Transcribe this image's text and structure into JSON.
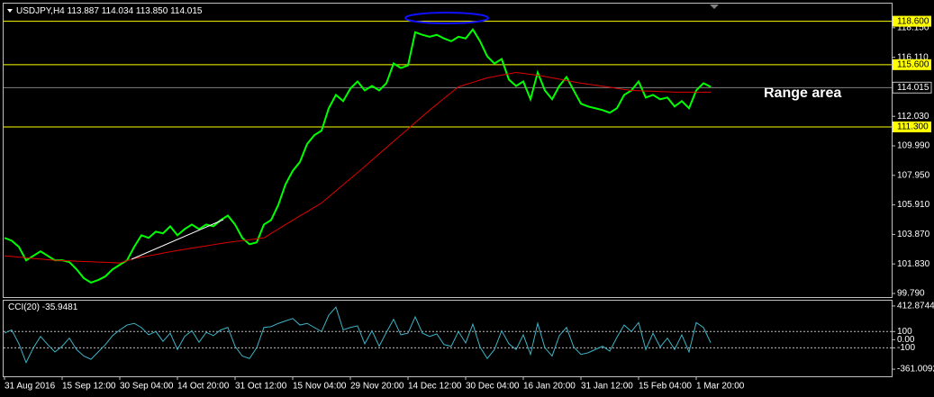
{
  "chart_data": [
    {
      "type": "line",
      "symbol": "USDJPY,H4",
      "ohlc": [
        "113.887",
        "114.034",
        "113.850",
        "114.015"
      ],
      "annotation": "Range area",
      "x": [
        "31 Aug 2016",
        null,
        null,
        null,
        null,
        null,
        null,
        null,
        "15 Sep 12:00",
        null,
        null,
        null,
        null,
        null,
        null,
        null,
        "30 Sep 04:00",
        null,
        null,
        null,
        null,
        null,
        null,
        null,
        "14 Oct 20:00",
        null,
        null,
        null,
        null,
        null,
        null,
        null,
        "31 Oct 12:00",
        null,
        null,
        null,
        null,
        null,
        null,
        null,
        "15 Nov 04:00",
        null,
        null,
        null,
        null,
        null,
        null,
        null,
        "29 Nov 20:00",
        null,
        null,
        null,
        null,
        null,
        null,
        null,
        "14 Dec 12:00",
        null,
        null,
        null,
        null,
        null,
        null,
        null,
        "30 Dec 04:00",
        null,
        null,
        null,
        null,
        null,
        null,
        null,
        "16 Jan 20:00",
        null,
        null,
        null,
        null,
        null,
        null,
        null,
        "31 Jan 12:00",
        null,
        null,
        null,
        null,
        null,
        null,
        null,
        "15 Feb 04:00",
        null,
        null,
        null,
        null,
        null,
        null,
        null,
        "1 Mar 20:00",
        null,
        null
      ],
      "series": [
        {
          "color": "#00ff00",
          "values": [
            103.63,
            103.44,
            103.01,
            102.08,
            102.39,
            102.7,
            102.39,
            102.08,
            102.08,
            101.96,
            101.46,
            100.85,
            100.54,
            100.72,
            100.97,
            101.46,
            101.77,
            102.08,
            103.01,
            103.81,
            103.63,
            104.06,
            103.94,
            104.43,
            103.81,
            104.24,
            104.55,
            104.24,
            104.55,
            104.43,
            104.86,
            105.17,
            104.55,
            103.63,
            103.19,
            103.32,
            104.55,
            104.86,
            105.91,
            107.33,
            108.26,
            108.88,
            110.12,
            110.73,
            111.04,
            112.59,
            113.51,
            113.08,
            113.95,
            114.44,
            113.82,
            114.13,
            113.82,
            114.32,
            115.68,
            115.37,
            115.55,
            117.84,
            117.66,
            117.53,
            117.66,
            117.41,
            117.22,
            117.53,
            117.41,
            118.03,
            117.22,
            116.17,
            115.68,
            115.99,
            114.57,
            114.13,
            114.44,
            113.21,
            115.06,
            113.82,
            113.21,
            114.13,
            114.75,
            113.82,
            112.9,
            112.71,
            112.59,
            112.46,
            112.28,
            112.59,
            113.51,
            113.82,
            114.44,
            113.33,
            113.51,
            113.21,
            113.33,
            112.71,
            113.08,
            112.59,
            113.82,
            114.32,
            114.07
          ]
        },
        {
          "color": "#e00000",
          "values": [
            102.39,
            102.35,
            102.3,
            102.26,
            102.21,
            102.17,
            102.12,
            102.08,
            102.06,
            102.04,
            102.02,
            102.0,
            101.98,
            101.96,
            101.94,
            101.92,
            101.9,
            102.05,
            102.21,
            102.3,
            102.39,
            102.48,
            102.58,
            102.67,
            102.76,
            102.84,
            102.92,
            103.0,
            103.08,
            103.16,
            103.24,
            103.32,
            103.38,
            103.44,
            103.5,
            103.57,
            103.63,
            103.94,
            104.24,
            104.55,
            104.85,
            105.15,
            105.44,
            105.74,
            106.04,
            106.46,
            106.88,
            107.3,
            107.72,
            108.14,
            108.57,
            109.0,
            109.44,
            109.87,
            110.3,
            110.73,
            111.16,
            111.6,
            112.03,
            112.46,
            112.86,
            113.27,
            113.67,
            114.07,
            114.23,
            114.38,
            114.54,
            114.69,
            114.78,
            114.88,
            114.97,
            115.06,
            115.0,
            114.93,
            114.87,
            114.78,
            114.69,
            114.6,
            114.5,
            114.41,
            114.32,
            114.25,
            114.18,
            114.11,
            114.04,
            113.96,
            113.89,
            113.82,
            113.8,
            113.78,
            113.76,
            113.74,
            113.72,
            113.7,
            113.7,
            113.7,
            113.7,
            113.7,
            113.7
          ]
        }
      ],
      "ylim": [
        99.54,
        119.82
      ],
      "yticks": [
        {
          "value": 118.15,
          "label": "118.150"
        },
        {
          "value": 116.11,
          "label": "116.110"
        },
        {
          "value": 112.03,
          "label": "112.030"
        },
        {
          "value": 109.99,
          "label": "109.990"
        },
        {
          "value": 107.95,
          "label": "107.950"
        },
        {
          "value": 105.91,
          "label": "105.910"
        },
        {
          "value": 103.87,
          "label": "103.870"
        },
        {
          "value": 101.83,
          "label": "101.830"
        },
        {
          "value": 99.79,
          "label": "99.790"
        }
      ],
      "levels": [
        {
          "value": 118.6,
          "label": "118.600"
        },
        {
          "value": 115.6,
          "label": "115.600"
        },
        {
          "value": 111.3,
          "label": "111.300"
        }
      ],
      "level_color": "#ffff00",
      "current_price": {
        "value": 114.015,
        "label": "114.015"
      }
    },
    {
      "type": "line",
      "title": "CCI(20)",
      "series": [
        {
          "color": "#3fb4c8",
          "values": [
            80,
            120,
            -50,
            -280,
            -100,
            40,
            -60,
            -150,
            -80,
            20,
            -120,
            -200,
            -240,
            -150,
            -60,
            50,
            120,
            180,
            200,
            150,
            60,
            100,
            -20,
            80,
            -120,
            40,
            110,
            -30,
            90,
            50,
            120,
            150,
            -80,
            -200,
            -230,
            -100,
            150,
            160,
            200,
            230,
            260,
            180,
            200,
            150,
            100,
            300,
            400,
            120,
            150,
            170,
            -50,
            110,
            -80,
            90,
            250,
            60,
            80,
            280,
            80,
            40,
            70,
            -60,
            -80,
            100,
            -40,
            190,
            -90,
            -230,
            -120,
            110,
            -50,
            -120,
            60,
            -180,
            200,
            -100,
            -200,
            50,
            150,
            -90,
            -180,
            -160,
            -120,
            -80,
            -140,
            30,
            180,
            100,
            210,
            -120,
            80,
            -90,
            20,
            -120,
            60,
            -150,
            210,
            150,
            -35.9481
          ]
        }
      ],
      "ylim": [
        -448,
        478
      ],
      "yticks": [
        412.8744,
        100,
        {
          "value": 0,
          "label": "0.00"
        },
        -100,
        -361.0092
      ],
      "levels": [
        100,
        -100
      ]
    }
  ]
}
